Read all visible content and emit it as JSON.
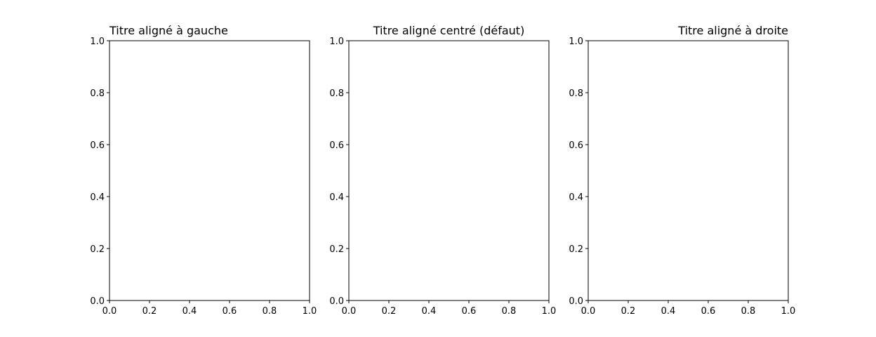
{
  "chart_data": [
    {
      "type": "scatter",
      "title": "Titre aligné à gauche",
      "title_align": "left",
      "xlim": [
        0,
        1
      ],
      "ylim": [
        0,
        1
      ],
      "xticks": [
        "0.0",
        "0.2",
        "0.4",
        "0.6",
        "0.8",
        "1.0"
      ],
      "yticks": [
        "0.0",
        "0.2",
        "0.4",
        "0.6",
        "0.8",
        "1.0"
      ],
      "series": [],
      "grid": false
    },
    {
      "type": "scatter",
      "title": "Titre aligné centré (défaut)",
      "title_align": "center",
      "xlim": [
        0,
        1
      ],
      "ylim": [
        0,
        1
      ],
      "xticks": [
        "0.0",
        "0.2",
        "0.4",
        "0.6",
        "0.8",
        "1.0"
      ],
      "yticks": [
        "0.0",
        "0.2",
        "0.4",
        "0.6",
        "0.8",
        "1.0"
      ],
      "series": [],
      "grid": false
    },
    {
      "type": "scatter",
      "title": "Titre aligné à droite",
      "title_align": "right",
      "xlim": [
        0,
        1
      ],
      "ylim": [
        0,
        1
      ],
      "xticks": [
        "0.0",
        "0.2",
        "0.4",
        "0.6",
        "0.8",
        "1.0"
      ],
      "yticks": [
        "0.0",
        "0.2",
        "0.4",
        "0.6",
        "0.8",
        "1.0"
      ],
      "series": [],
      "grid": false
    }
  ]
}
